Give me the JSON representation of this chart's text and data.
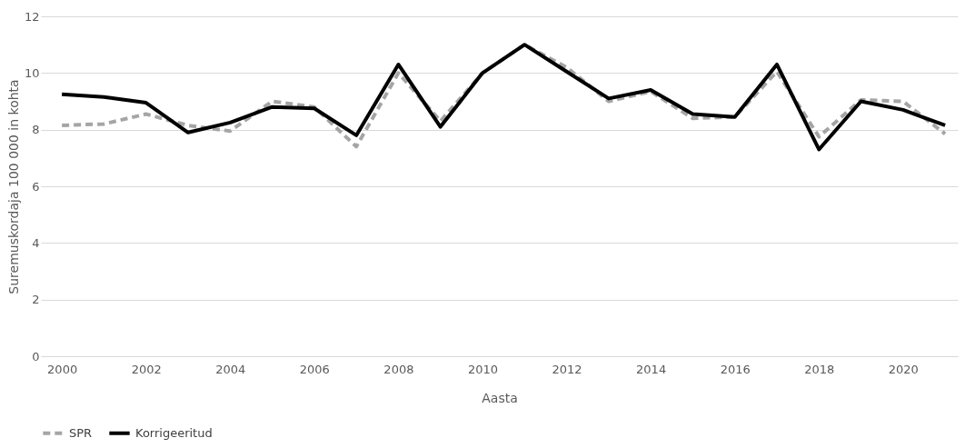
{
  "chart_data": {
    "type": "line",
    "xlabel": "Aasta",
    "ylabel": "Suremuskordaja 100 000 in kohta",
    "x": [
      2000,
      2001,
      2002,
      2003,
      2004,
      2005,
      2006,
      2007,
      2008,
      2009,
      2010,
      2011,
      2012,
      2013,
      2014,
      2015,
      2016,
      2017,
      2018,
      2019,
      2020,
      2021
    ],
    "series": [
      {
        "name": "SPR",
        "color": "#a5a5a5",
        "line_style": "dashed",
        "values": [
          8.15,
          8.2,
          8.55,
          8.15,
          7.95,
          9.0,
          8.8,
          7.4,
          10.0,
          8.3,
          10.0,
          11.0,
          10.2,
          9.0,
          9.35,
          8.4,
          8.45,
          10.05,
          7.75,
          9.05,
          9.0,
          7.85
        ]
      },
      {
        "name": "Korrigeeritud",
        "color": "#000000",
        "line_style": "solid",
        "values": [
          9.25,
          9.15,
          8.95,
          7.9,
          8.25,
          8.8,
          8.75,
          7.8,
          10.3,
          8.1,
          10.0,
          11.0,
          10.05,
          9.1,
          9.4,
          8.55,
          8.45,
          10.3,
          7.3,
          9.0,
          8.7,
          8.15
        ]
      }
    ],
    "xlim": [
      1999.5,
      2021.3
    ],
    "xticks": [
      2000,
      2002,
      2004,
      2006,
      2008,
      2010,
      2012,
      2014,
      2016,
      2018,
      2020
    ],
    "ylim": [
      0,
      12
    ],
    "yticks": [
      0,
      2,
      4,
      6,
      8,
      10,
      12
    ],
    "grid": "y",
    "legend": "bottom",
    "marker": "none"
  }
}
